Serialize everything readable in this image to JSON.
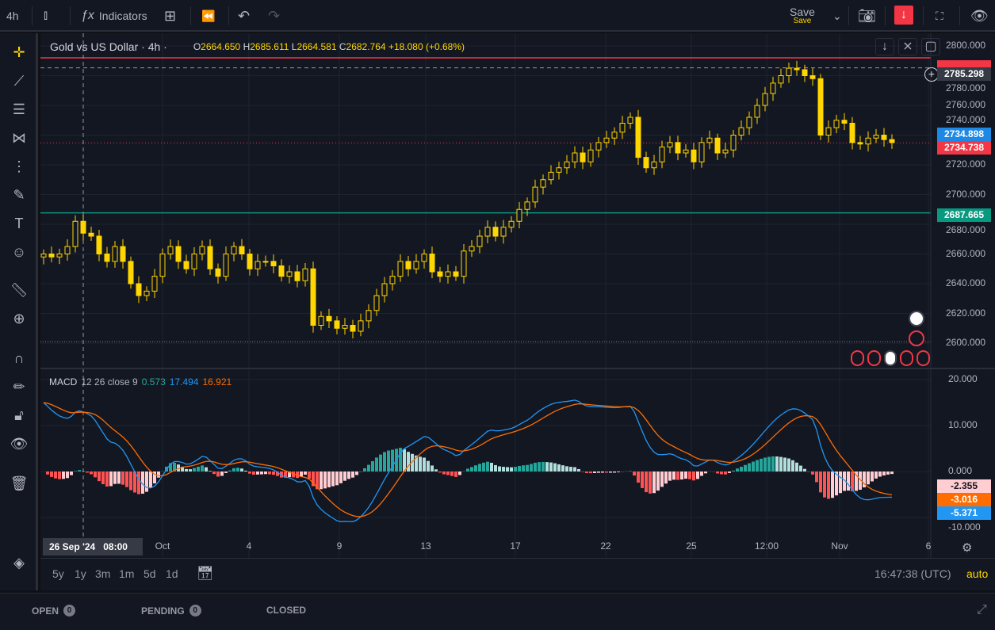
{
  "toolbar": {
    "interval": "4h",
    "indicators_label": "Indicators",
    "save_label": "Save",
    "save_sub": "Save",
    "icons": [
      "candles-icon",
      "fx-icon",
      "layouts-icon",
      "replay-icon",
      "undo-icon",
      "redo-icon",
      "chevron-down-icon",
      "camera-icon",
      "sell-arrow-icon",
      "fullscreen-icon",
      "eye-icon"
    ]
  },
  "left_tools": [
    "crosshair-icon",
    "trendline-icon",
    "fib-icon",
    "pattern-icon",
    "projection-icon",
    "brush-icon",
    "text-icon",
    "emoji-icon",
    "ruler-icon",
    "zoom-in-icon",
    "magnet-icon",
    "lock-drawing-icon",
    "lock-icon",
    "eye-icon",
    "trash-icon",
    "layers-icon"
  ],
  "legend": {
    "symbol": "Gold vs US Dollar · 4h ·",
    "o_label": "O",
    "o": "2664.650",
    "h_label": "H",
    "h": "2685.611",
    "l_label": "L",
    "l": "2664.581",
    "c_label": "C",
    "c": "2682.764",
    "change": "+18.080 (+0.68%)"
  },
  "macd_legend": {
    "name": "MACD",
    "params": "12 26 close 9",
    "hist": "0.573",
    "macd": "17.494",
    "signal": "16.921"
  },
  "price_axis": {
    "ticks": [
      "2800.000",
      "2780.000",
      "2760.000",
      "2740.000",
      "2720.000",
      "2700.000",
      "2680.000",
      "2660.000",
      "2640.000",
      "2620.000",
      "2600.000"
    ],
    "labels": {
      "crosshair": "2785.298",
      "bid": "2734.898",
      "ask": "2734.738",
      "level": "2687.665"
    }
  },
  "macd_axis": {
    "ticks": [
      "20.000",
      "10.000",
      "0.000",
      "-10.000"
    ],
    "labels": {
      "hist": "-2.355",
      "signal": "-3.016",
      "macd": "-5.371"
    }
  },
  "time_axis": {
    "ticks": [
      "Oct",
      "4",
      "9",
      "13",
      "17",
      "22",
      "25",
      "12:00",
      "Nov",
      "6"
    ],
    "crosshair": "26 Sep '24   08:00"
  },
  "range_bar": {
    "ranges": [
      "5y",
      "1y",
      "3m",
      "1m",
      "5d",
      "1d"
    ],
    "clock": "16:47:38 (UTC)",
    "auto": "auto"
  },
  "bottom_panel": {
    "tabs": [
      {
        "label": "OPEN",
        "count": "0"
      },
      {
        "label": "PENDING",
        "count": "0"
      },
      {
        "label": "CLOSED"
      }
    ]
  },
  "colors": {
    "candle": "#ffd600",
    "macd": "#2196f3",
    "signal": "#ff6d00",
    "hist_up": "#26a69a",
    "hist_up_fade": "#b2dfdb",
    "hist_down": "#ff5252",
    "hist_down_fade": "#ffcdd2",
    "level_line": "#089981",
    "alert_line": "#f23645",
    "bid": "#2962ff"
  },
  "chart_data": {
    "type": "candlestick",
    "ylim": [
      2590,
      2810
    ],
    "macd_ylim": [
      -12,
      22
    ],
    "levels": {
      "alert": 2792,
      "crosshair": 2785.298,
      "ask": 2734.738,
      "level": 2687.665,
      "low": 2601
    },
    "closes": [
      2660,
      2658,
      2660,
      2665,
      2682,
      2674,
      2672,
      2660,
      2655,
      2665,
      2655,
      2640,
      2632,
      2635,
      2645,
      2660,
      2665,
      2655,
      2650,
      2660,
      2665,
      2650,
      2645,
      2660,
      2665,
      2660,
      2650,
      2655,
      2655,
      2652,
      2645,
      2648,
      2642,
      2650,
      2612,
      2618,
      2615,
      2610,
      2612,
      2608,
      2615,
      2622,
      2632,
      2640,
      2645,
      2655,
      2650,
      2655,
      2660,
      2648,
      2645,
      2648,
      2645,
      2662,
      2665,
      2672,
      2678,
      2672,
      2678,
      2682,
      2690,
      2695,
      2705,
      2710,
      2715,
      2718,
      2722,
      2728,
      2722,
      2730,
      2735,
      2738,
      2742,
      2748,
      2752,
      2725,
      2718,
      2722,
      2732,
      2735,
      2728,
      2730,
      2722,
      2735,
      2738,
      2728,
      2730,
      2740,
      2745,
      2752,
      2760,
      2768,
      2775,
      2780,
      2785,
      2784,
      2780,
      2778,
      2740,
      2745,
      2750,
      2748,
      2735,
      2734,
      2738,
      2740,
      2737,
      2735
    ]
  }
}
